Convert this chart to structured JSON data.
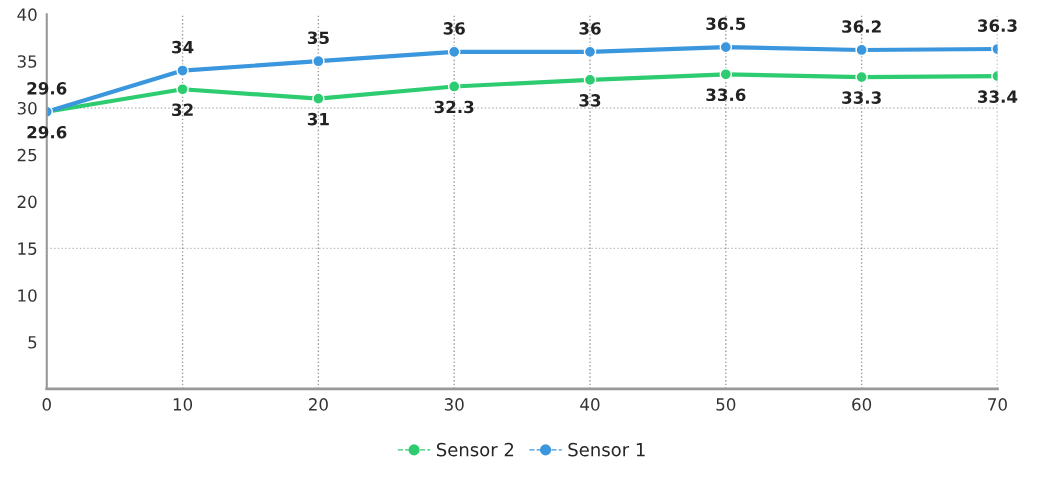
{
  "chart_data": {
    "type": "line",
    "x": [
      0,
      10,
      20,
      30,
      40,
      50,
      60,
      70
    ],
    "series": [
      {
        "name": "Sensor 2",
        "color": "#2ecc71",
        "values": [
          29.6,
          32,
          31,
          32.3,
          33,
          33.6,
          33.3,
          33.4
        ]
      },
      {
        "name": "Sensor 1",
        "color": "#3a96dd",
        "values": [
          29.6,
          34,
          35,
          36,
          36,
          36.5,
          36.2,
          36.3
        ]
      }
    ],
    "xlim": [
      0,
      70
    ],
    "xticks": [
      0,
      10,
      20,
      30,
      40,
      50,
      60,
      70
    ],
    "ylim": [
      0,
      40
    ],
    "yticks": [
      5,
      10,
      15,
      20,
      25,
      30,
      35,
      40
    ],
    "grid": "x",
    "ref_lines": [
      {
        "axis": "y",
        "value": 15,
        "line_style": "dotted",
        "color": "#bbbbbb"
      },
      {
        "axis": "y",
        "value": 30,
        "line_style": "dotted",
        "color": "#bbbbbb"
      }
    ],
    "data_labels": true,
    "marker": "circle",
    "line_style": "solid",
    "legend": "bottom"
  }
}
